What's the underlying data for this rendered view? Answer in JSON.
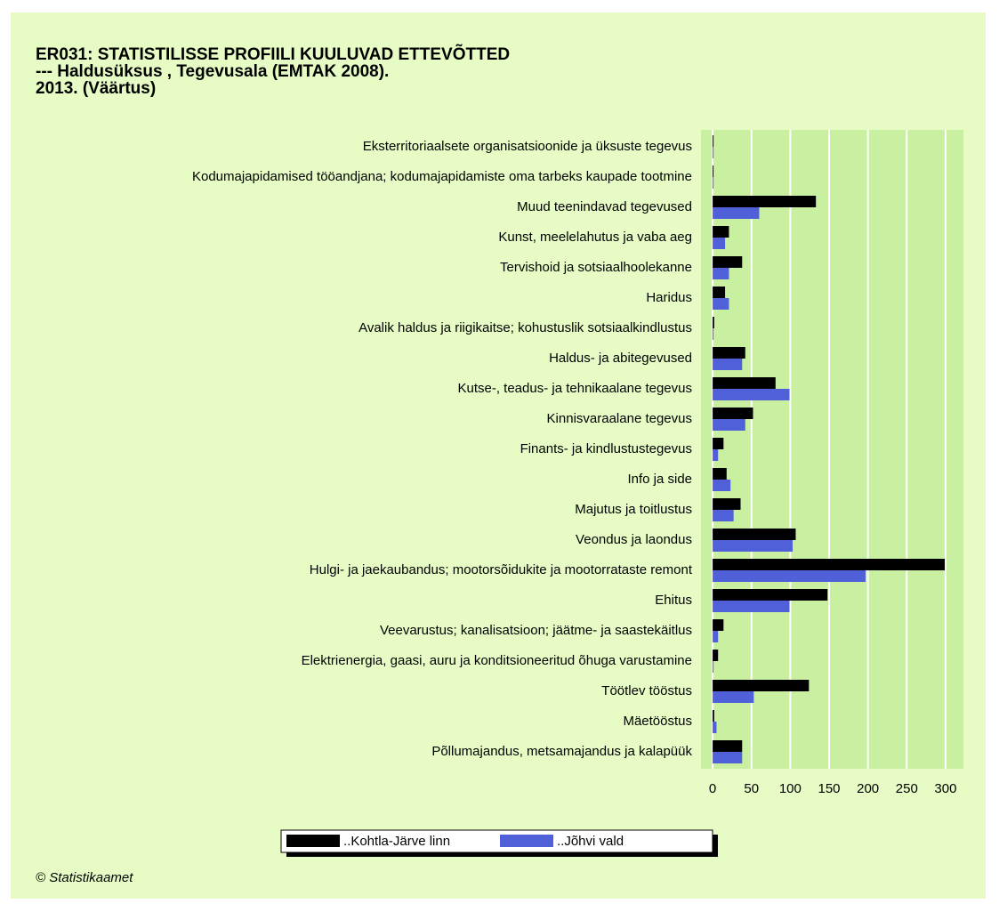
{
  "chart_data": {
    "type": "hbar",
    "title": [
      "ER031: STATISTILISSE PROFIILI KUULUVAD ETTEVÕTTED",
      "--- Haldusüksus , Tegevusala (EMTAK 2008).",
      "2013. (Väärtus)"
    ],
    "categories": [
      "Eksterritoriaalsete organisatsioonide ja üksuste tegevus",
      "Kodumajapidamised tööandjana; kodumajapidamiste oma tarbeks kaupade tootmine",
      "Muud teenindavad tegevused",
      "Kunst, meelelahutus ja vaba aeg",
      "Tervishoid ja sotsiaalhoolekanne",
      "Haridus",
      "Avalik haldus ja riigikaitse; kohustuslik sotsiaalkindlustus",
      "Haldus- ja abitegevused",
      "Kutse-, teadus- ja tehnikaalane tegevus",
      "Kinnisvaraalane tegevus",
      "Finants- ja kindlustustegevus",
      "Info ja side",
      "Majutus ja toitlustus",
      "Veondus ja laondus",
      "Hulgi- ja jaekaubandus; mootorsõidukite ja mootorrataste remont",
      "Ehitus",
      "Veevarustus; kanalisatsioon; jäätme- ja saastekäitlus",
      "Elektrienergia, gaasi, auru ja konditsioneeritud õhuga varustamine",
      "Töötlev tööstus",
      "Mäetööstus",
      "Põllumajandus, metsamajandus ja kalapüük"
    ],
    "series": [
      {
        "name": "..Kohtla-Järve linn",
        "color": "#000000",
        "values": [
          1,
          1,
          133,
          21,
          38,
          16,
          2,
          42,
          81,
          52,
          14,
          18,
          36,
          107,
          299,
          148,
          14,
          7,
          124,
          2,
          38
        ]
      },
      {
        "name": "..Jõhvi vald",
        "color": "#5060d8",
        "values": [
          1,
          1,
          60,
          16,
          21,
          21,
          1,
          38,
          99,
          42,
          7,
          23,
          27,
          103,
          197,
          99,
          7,
          1,
          53,
          5,
          38
        ]
      }
    ],
    "xlim": [
      -15,
      323
    ],
    "xticks": [
      0,
      50,
      100,
      150,
      200,
      250,
      300
    ],
    "grid": true,
    "source": "© Statistikaamet"
  }
}
